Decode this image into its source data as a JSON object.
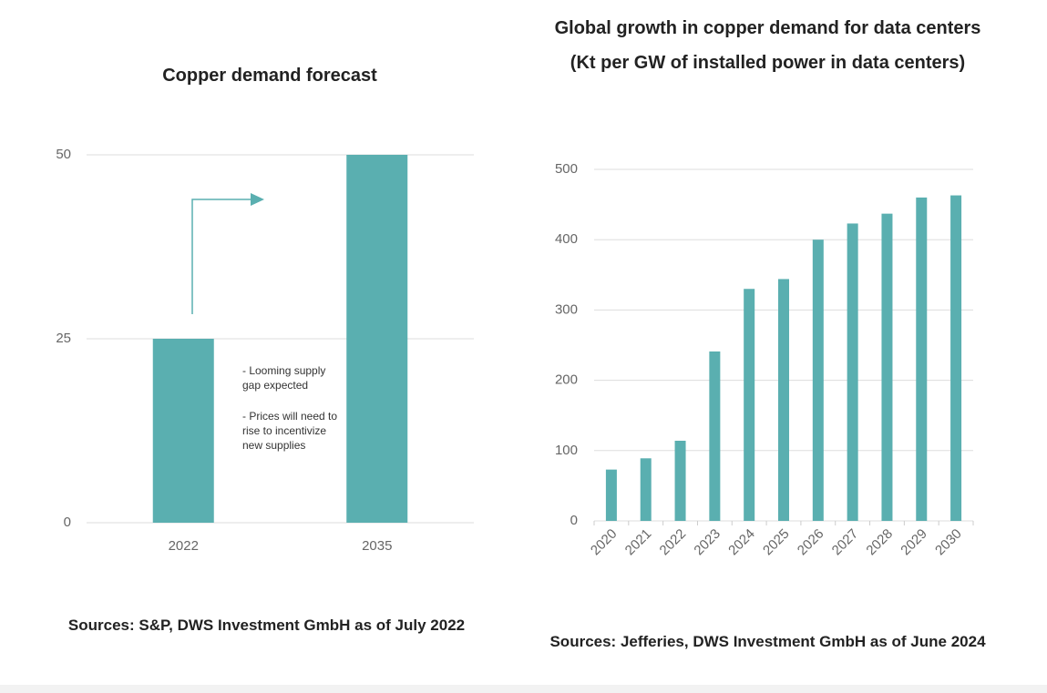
{
  "chart_data": [
    {
      "type": "bar",
      "title": "Copper demand forecast",
      "categories": [
        "2022",
        "2035"
      ],
      "values": [
        25,
        50
      ],
      "color": "#5aafb0",
      "ylim": [
        0,
        50
      ],
      "yticks": [
        0,
        25,
        50
      ],
      "grid": true,
      "annotations": [
        "- Looming supply gap expected",
        "- Prices will need to rise to incentivize new supplies"
      ],
      "source": "Sources: S&P, DWS Investment GmbH as of July 2022"
    },
    {
      "type": "bar",
      "title": "Global growth in copper demand for data centers (Kt per GW of installed power in data centers)",
      "categories": [
        "2020",
        "2021",
        "2022",
        "2023",
        "2024",
        "2025",
        "2026",
        "2027",
        "2028",
        "2029",
        "2030"
      ],
      "values": [
        73,
        89,
        114,
        241,
        330,
        344,
        400,
        423,
        437,
        460,
        463
      ],
      "color": "#5aafb0",
      "ylim": [
        0,
        500
      ],
      "yticks": [
        0,
        100,
        200,
        300,
        400,
        500
      ],
      "grid": true,
      "source": "Sources: Jefferies, DWS Investment GmbH as of June 2024"
    }
  ]
}
